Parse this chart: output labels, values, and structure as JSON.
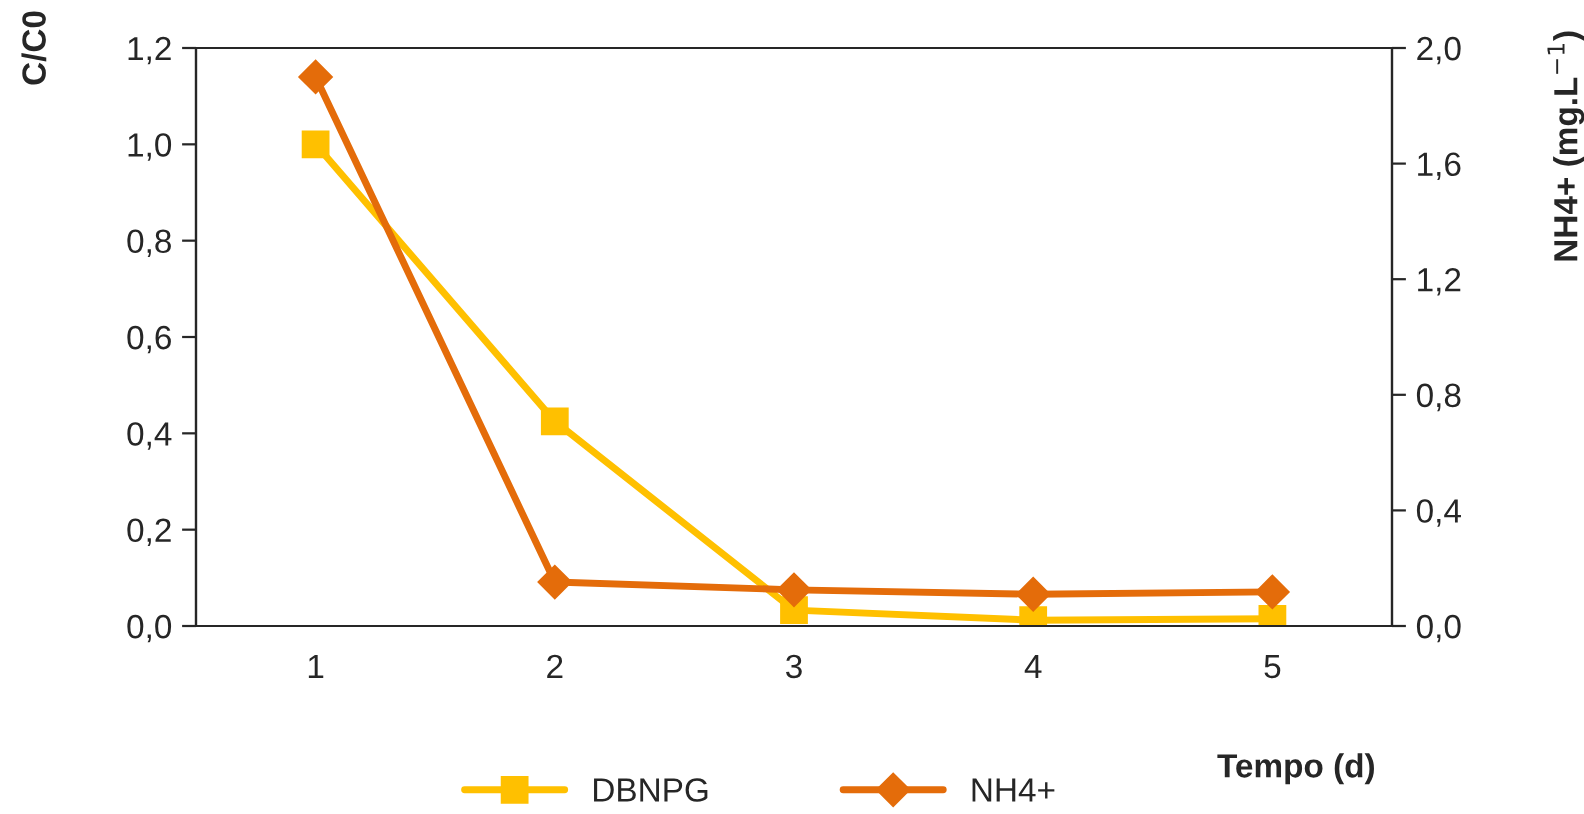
{
  "chart_data": {
    "type": "line",
    "categories": [
      "1",
      "2",
      "3",
      "4",
      "5"
    ],
    "xlabel": "Tempo (d)",
    "ylabel": "C/C0",
    "y2label": "NH4+ (mg.L$^{−1}$)",
    "series": [
      {
        "name": "DBNPG",
        "color": "#ffc000",
        "marker": "square",
        "values": [
          1.0,
          0.425,
          0.033,
          0.012,
          0.015
        ]
      },
      {
        "name": "NH4+",
        "color": "#e46c0a",
        "marker": "diamond",
        "axis": "y2",
        "values": [
          1.9,
          0.152,
          0.125,
          0.11,
          0.118
        ]
      }
    ],
    "ylim": [
      0,
      1.2
    ],
    "yticks": [
      {
        "value": 0,
        "label": "0,0"
      },
      {
        "value": 0.2,
        "label": "0,2"
      },
      {
        "value": 0.4,
        "label": "0,4"
      },
      {
        "value": 0.6,
        "label": "0,6"
      },
      {
        "value": 0.8,
        "label": "0,8"
      },
      {
        "value": 1.0,
        "label": "1,0"
      },
      {
        "value": 1.2,
        "label": "1,2"
      }
    ],
    "y2lim": [
      0,
      2.0
    ],
    "y2ticks": [
      {
        "value": 0,
        "label": "0,0"
      },
      {
        "value": 0.4,
        "label": "0,4"
      },
      {
        "value": 0.8,
        "label": "0,8"
      },
      {
        "value": 1.2,
        "label": "1,2"
      },
      {
        "value": 1.6,
        "label": "1,6"
      },
      {
        "value": 2.0,
        "label": "2,0"
      }
    ],
    "grid": false,
    "legend": "bottom",
    "line_style": "solid"
  }
}
